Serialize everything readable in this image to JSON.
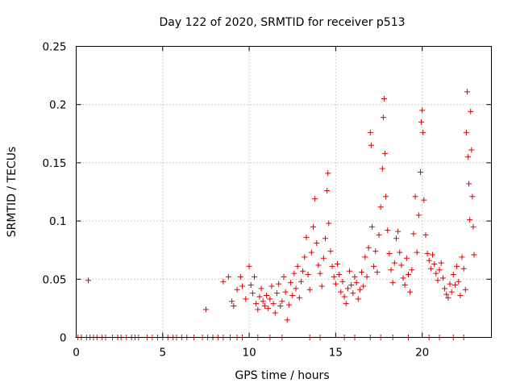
{
  "chart_data": {
    "type": "scatter",
    "title": "Day 122 of 2020, SRMTID for receiver p513",
    "xlabel": "GPS time / hours",
    "ylabel": "SRMTID / TECUs",
    "xlim": [
      0,
      24
    ],
    "ylim": [
      0,
      0.25
    ],
    "x_ticks": [
      0,
      5,
      10,
      15,
      20
    ],
    "x_tick_labels": [
      "0",
      "5",
      "10",
      "15",
      "20"
    ],
    "y_ticks": [
      0,
      0.05,
      0.1,
      0.15,
      0.2,
      0.25
    ],
    "y_tick_labels": [
      "0",
      "0.05",
      "0.1",
      "0.15",
      "0.2",
      "0.25"
    ],
    "grid": true,
    "marker": "+",
    "color": "#e00000",
    "series": [
      {
        "name": "SRMTID",
        "points": [
          [
            0.1,
            0
          ],
          [
            0.3,
            0
          ],
          [
            0.6,
            0
          ],
          [
            0.8,
            0
          ],
          [
            1.0,
            0
          ],
          [
            1.2,
            0
          ],
          [
            1.5,
            0
          ],
          [
            1.7,
            0
          ],
          [
            2.1,
            0
          ],
          [
            2.4,
            0
          ],
          [
            2.6,
            0
          ],
          [
            2.9,
            0
          ],
          [
            3.2,
            0
          ],
          [
            3.4,
            0
          ],
          [
            3.6,
            0
          ],
          [
            4.1,
            0
          ],
          [
            4.4,
            0
          ],
          [
            4.7,
            0
          ],
          [
            5.0,
            0
          ],
          [
            5.3,
            0
          ],
          [
            5.6,
            0
          ],
          [
            5.8,
            0
          ],
          [
            6.1,
            0
          ],
          [
            6.4,
            0
          ],
          [
            6.8,
            0
          ],
          [
            7.3,
            0
          ],
          [
            7.6,
            0
          ],
          [
            7.9,
            0
          ],
          [
            8.2,
            0
          ],
          [
            8.5,
            0
          ],
          [
            8.9,
            0
          ],
          [
            9.3,
            0
          ],
          [
            9.6,
            0
          ],
          [
            10.5,
            0
          ],
          [
            11.2,
            0
          ],
          [
            11.9,
            0
          ],
          [
            13.5,
            0
          ],
          [
            14.1,
            0
          ],
          [
            15.5,
            0
          ],
          [
            16.1,
            0
          ],
          [
            17.0,
            0
          ],
          [
            17.6,
            0
          ],
          [
            18.3,
            0
          ],
          [
            19.2,
            0
          ],
          [
            20.4,
            0
          ],
          [
            21.0,
            0
          ],
          [
            21.8,
            0
          ],
          [
            22.4,
            0
          ],
          [
            0.7,
            0.049
          ],
          [
            7.5,
            0.024
          ],
          [
            8.5,
            0.048
          ],
          [
            8.8,
            0.052
          ],
          [
            9.0,
            0.031
          ],
          [
            9.1,
            0.027
          ],
          [
            9.3,
            0.041
          ],
          [
            9.5,
            0.052
          ],
          [
            9.6,
            0.044
          ],
          [
            9.8,
            0.033
          ],
          [
            10.0,
            0.061
          ],
          [
            10.1,
            0.045
          ],
          [
            10.2,
            0.038
          ],
          [
            10.3,
            0.052
          ],
          [
            10.4,
            0.029
          ],
          [
            10.5,
            0.024
          ],
          [
            10.6,
            0.035
          ],
          [
            10.7,
            0.042
          ],
          [
            10.8,
            0.031
          ],
          [
            10.9,
            0.027
          ],
          [
            11.0,
            0.036
          ],
          [
            11.1,
            0.025
          ],
          [
            11.2,
            0.033
          ],
          [
            11.3,
            0.044
          ],
          [
            11.4,
            0.029
          ],
          [
            11.5,
            0.021
          ],
          [
            11.6,
            0.038
          ],
          [
            11.7,
            0.046
          ],
          [
            11.8,
            0.027
          ],
          [
            11.9,
            0.031
          ],
          [
            12.0,
            0.052
          ],
          [
            12.1,
            0.039
          ],
          [
            12.2,
            0.015
          ],
          [
            12.3,
            0.028
          ],
          [
            12.4,
            0.047
          ],
          [
            12.5,
            0.036
          ],
          [
            12.6,
            0.055
          ],
          [
            12.7,
            0.042
          ],
          [
            12.8,
            0.061
          ],
          [
            12.9,
            0.034
          ],
          [
            13.0,
            0.048
          ],
          [
            13.1,
            0.057
          ],
          [
            13.2,
            0.069
          ],
          [
            13.3,
            0.086
          ],
          [
            13.4,
            0.054
          ],
          [
            13.5,
            0.041
          ],
          [
            13.6,
            0.073
          ],
          [
            13.7,
            0.095
          ],
          [
            13.8,
            0.119
          ],
          [
            13.9,
            0.081
          ],
          [
            14.0,
            0.062
          ],
          [
            14.1,
            0.055
          ],
          [
            14.2,
            0.044
          ],
          [
            14.3,
            0.068
          ],
          [
            14.4,
            0.085
          ],
          [
            14.5,
            0.126
          ],
          [
            14.55,
            0.141
          ],
          [
            14.6,
            0.098
          ],
          [
            14.7,
            0.074
          ],
          [
            14.8,
            0.061
          ],
          [
            14.9,
            0.052
          ],
          [
            15.0,
            0.046
          ],
          [
            15.1,
            0.063
          ],
          [
            15.2,
            0.054
          ],
          [
            15.3,
            0.039
          ],
          [
            15.4,
            0.048
          ],
          [
            15.5,
            0.035
          ],
          [
            15.6,
            0.029
          ],
          [
            15.7,
            0.042
          ],
          [
            15.8,
            0.057
          ],
          [
            15.9,
            0.045
          ],
          [
            16.0,
            0.038
          ],
          [
            16.1,
            0.052
          ],
          [
            16.2,
            0.047
          ],
          [
            16.3,
            0.033
          ],
          [
            16.4,
            0.041
          ],
          [
            16.5,
            0.056
          ],
          [
            16.6,
            0.044
          ],
          [
            16.7,
            0.069
          ],
          [
            16.8,
            0.052
          ],
          [
            16.9,
            0.077
          ],
          [
            17.0,
            0.176
          ],
          [
            17.05,
            0.165
          ],
          [
            17.1,
            0.095
          ],
          [
            17.2,
            0.061
          ],
          [
            17.3,
            0.074
          ],
          [
            17.4,
            0.056
          ],
          [
            17.5,
            0.088
          ],
          [
            17.6,
            0.112
          ],
          [
            17.7,
            0.145
          ],
          [
            17.75,
            0.189
          ],
          [
            17.8,
            0.205
          ],
          [
            17.85,
            0.158
          ],
          [
            17.9,
            0.121
          ],
          [
            18.0,
            0.092
          ],
          [
            18.1,
            0.072
          ],
          [
            18.2,
            0.058
          ],
          [
            18.3,
            0.047
          ],
          [
            18.4,
            0.064
          ],
          [
            18.5,
            0.085
          ],
          [
            18.6,
            0.091
          ],
          [
            18.7,
            0.073
          ],
          [
            18.8,
            0.062
          ],
          [
            18.9,
            0.051
          ],
          [
            19.0,
            0.045
          ],
          [
            19.1,
            0.068
          ],
          [
            19.2,
            0.054
          ],
          [
            19.3,
            0.039
          ],
          [
            19.4,
            0.058
          ],
          [
            19.5,
            0.089
          ],
          [
            19.6,
            0.121
          ],
          [
            19.7,
            0.073
          ],
          [
            19.8,
            0.105
          ],
          [
            19.9,
            0.142
          ],
          [
            19.95,
            0.185
          ],
          [
            20.0,
            0.195
          ],
          [
            20.05,
            0.176
          ],
          [
            20.1,
            0.118
          ],
          [
            20.2,
            0.088
          ],
          [
            20.3,
            0.072
          ],
          [
            20.4,
            0.066
          ],
          [
            20.5,
            0.059
          ],
          [
            20.6,
            0.071
          ],
          [
            20.7,
            0.063
          ],
          [
            20.8,
            0.055
          ],
          [
            20.9,
            0.049
          ],
          [
            21.0,
            0.058
          ],
          [
            21.1,
            0.064
          ],
          [
            21.2,
            0.051
          ],
          [
            21.3,
            0.042
          ],
          [
            21.4,
            0.037
          ],
          [
            21.5,
            0.034
          ],
          [
            21.6,
            0.046
          ],
          [
            21.7,
            0.039
          ],
          [
            21.8,
            0.054
          ],
          [
            21.9,
            0.045
          ],
          [
            22.0,
            0.061
          ],
          [
            22.1,
            0.048
          ],
          [
            22.2,
            0.036
          ],
          [
            22.3,
            0.069
          ],
          [
            22.4,
            0.059
          ],
          [
            22.5,
            0.041
          ],
          [
            22.55,
            0.176
          ],
          [
            22.6,
            0.211
          ],
          [
            22.65,
            0.155
          ],
          [
            22.7,
            0.132
          ],
          [
            22.75,
            0.101
          ],
          [
            22.8,
            0.194
          ],
          [
            22.85,
            0.161
          ],
          [
            22.9,
            0.121
          ],
          [
            22.95,
            0.095
          ],
          [
            23.0,
            0.071
          ]
        ]
      }
    ]
  }
}
